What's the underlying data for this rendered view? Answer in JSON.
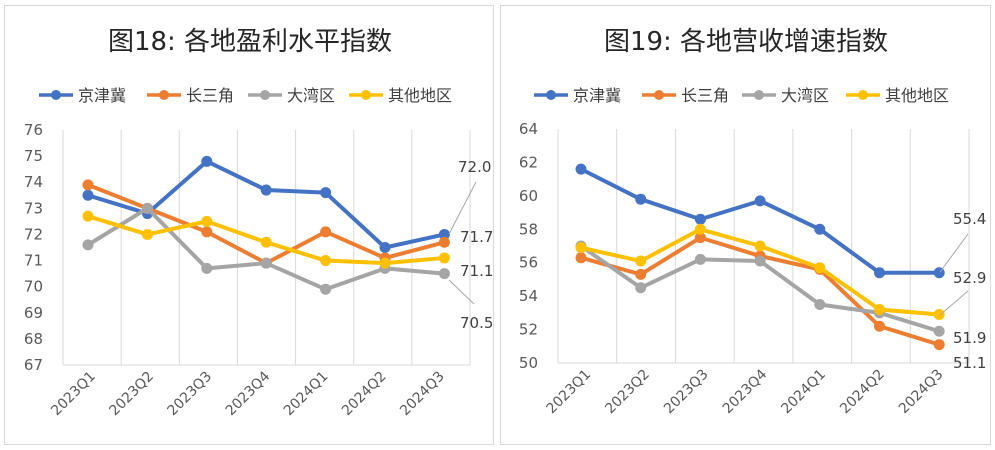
{
  "charts": [
    {
      "title": "图18: 各地盈利水平指数",
      "chart_data": {
        "type": "line",
        "title": "图18: 各地盈利水平指数",
        "categories": [
          "2023Q1",
          "2023Q2",
          "2023Q3",
          "2023Q4",
          "2024Q1",
          "2024Q2",
          "2024Q3"
        ],
        "ylim": [
          67,
          76
        ],
        "y_ticks": [
          67,
          68,
          69,
          70,
          71,
          72,
          73,
          74,
          75,
          76
        ],
        "grid": "vertical",
        "legend": "top",
        "series": [
          {
            "name": "京津冀",
            "color": "#4472C4",
            "values": [
              73.5,
              72.8,
              74.8,
              73.7,
              73.6,
              71.5,
              72.0
            ]
          },
          {
            "name": "长三角",
            "color": "#ED7D31",
            "values": [
              73.9,
              73.0,
              72.1,
              70.9,
              72.1,
              71.1,
              71.7
            ]
          },
          {
            "name": "大湾区",
            "color": "#A5A5A5",
            "values": [
              71.6,
              73.0,
              70.7,
              70.9,
              69.9,
              70.7,
              70.5
            ]
          },
          {
            "name": "其他地区",
            "color": "#FFC000",
            "values": [
              72.7,
              72.0,
              72.5,
              71.7,
              71.0,
              70.9,
              71.1
            ]
          }
        ],
        "data_labels": [
          "72.0",
          "71.7",
          "71.1",
          "70.5"
        ]
      }
    },
    {
      "title": "图19: 各地营收增速指数",
      "chart_data": {
        "type": "line",
        "title": "图19: 各地营收增速指数",
        "categories": [
          "2023Q1",
          "2023Q2",
          "2023Q3",
          "2023Q4",
          "2024Q1",
          "2024Q2",
          "2024Q3"
        ],
        "ylim": [
          50,
          64
        ],
        "y_ticks": [
          50,
          52,
          54,
          56,
          58,
          60,
          62,
          64
        ],
        "grid": "vertical",
        "legend": "top",
        "series": [
          {
            "name": "京津冀",
            "color": "#4472C4",
            "values": [
              61.6,
              59.8,
              58.6,
              59.7,
              58.0,
              55.4,
              55.4
            ]
          },
          {
            "name": "长三角",
            "color": "#ED7D31",
            "values": [
              56.3,
              55.3,
              57.5,
              56.4,
              55.6,
              52.2,
              51.1
            ]
          },
          {
            "name": "大湾区",
            "color": "#A5A5A5",
            "values": [
              57.0,
              54.5,
              56.2,
              56.1,
              53.5,
              53.0,
              51.9
            ]
          },
          {
            "name": "其他地区",
            "color": "#FFC000",
            "values": [
              56.9,
              56.1,
              58.0,
              57.0,
              55.7,
              53.2,
              52.9
            ]
          }
        ],
        "data_labels": [
          "55.4",
          "52.9",
          "51.9",
          "51.1"
        ]
      }
    }
  ]
}
